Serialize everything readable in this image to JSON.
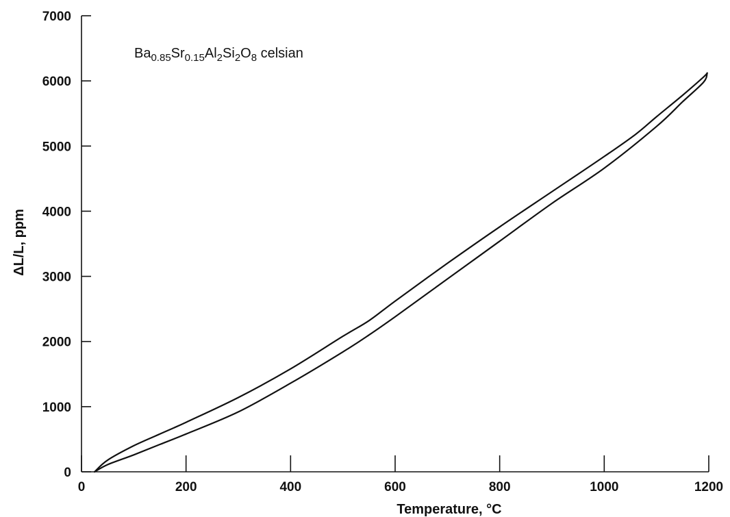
{
  "chart_data": {
    "type": "line",
    "title": "",
    "xlabel": "Temperature, °C",
    "ylabel": "ΔL/L, ppm",
    "xlim": [
      0,
      1200
    ],
    "ylim": [
      0,
      7000
    ],
    "x_ticks": [
      "0",
      "200",
      "400",
      "600",
      "800",
      "1000",
      "1200"
    ],
    "y_ticks": [
      "0",
      "1000",
      "2000",
      "3000",
      "4000",
      "5000",
      "6000",
      "7000"
    ],
    "grid": false,
    "annotation": {
      "parts": [
        {
          "text": "Ba",
          "sub": false
        },
        {
          "text": "0.85",
          "sub": true
        },
        {
          "text": "Sr",
          "sub": false
        },
        {
          "text": "0.15",
          "sub": true
        },
        {
          "text": "Al",
          "sub": false
        },
        {
          "text": "2",
          "sub": true
        },
        {
          "text": "Si",
          "sub": false
        },
        {
          "text": "2",
          "sub": true
        },
        {
          "text": "O",
          "sub": false
        },
        {
          "text": "8",
          "sub": true
        },
        {
          "text": " celsian",
          "sub": false
        }
      ]
    },
    "series": [
      {
        "x": [
          25,
          50,
          100,
          150,
          200,
          300,
          400,
          500,
          550,
          600,
          700,
          800,
          900,
          1000,
          1060,
          1100,
          1150,
          1190,
          1197
        ],
        "y": [
          0,
          180,
          400,
          580,
          760,
          1140,
          1580,
          2080,
          2320,
          2620,
          3200,
          3760,
          4300,
          4840,
          5180,
          5450,
          5780,
          6060,
          6120
        ]
      },
      {
        "x": [
          25,
          50,
          100,
          150,
          200,
          300,
          400,
          500,
          550,
          600,
          700,
          800,
          900,
          1000,
          1100,
          1150,
          1190,
          1197
        ],
        "y": [
          0,
          110,
          260,
          420,
          580,
          920,
          1360,
          1840,
          2100,
          2380,
          2960,
          3540,
          4120,
          4660,
          5300,
          5680,
          5980,
          6120
        ]
      }
    ]
  }
}
